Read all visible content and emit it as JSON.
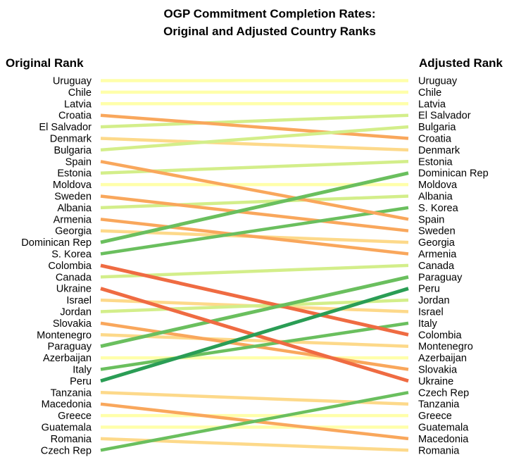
{
  "chart_data": {
    "type": "slope",
    "title_lines": [
      "OGP Commitment Completion Rates:",
      "Original and Adjusted Country Ranks"
    ],
    "left_header": "Original Rank",
    "right_header": "Adjusted Rank",
    "original_rank": [
      "Uruguay",
      "Chile",
      "Latvia",
      "Croatia",
      "El Salvador",
      "Denmark",
      "Bulgaria",
      "Spain",
      "Estonia",
      "Moldova",
      "Sweden",
      "Albania",
      "Armenia",
      "Georgia",
      "Dominican Rep",
      "S. Korea",
      "Colombia",
      "Canada",
      "Ukraine",
      "Israel",
      "Jordan",
      "Slovakia",
      "Montenegro",
      "Paraguay",
      "Azerbaijan",
      "Italy",
      "Peru",
      "Tanzania",
      "Macedonia",
      "Greece",
      "Guatemala",
      "Romania",
      "Czech Rep"
    ],
    "adjusted_rank": [
      "Uruguay",
      "Chile",
      "Latvia",
      "El Salvador",
      "Bulgaria",
      "Croatia",
      "Denmark",
      "Estonia",
      "Dominican Rep",
      "Moldova",
      "Albania",
      "S. Korea",
      "Spain",
      "Sweden",
      "Georgia",
      "Armenia",
      "Canada",
      "Paraguay",
      "Peru",
      "Jordan",
      "Israel",
      "Italy",
      "Colombia",
      "Montenegro",
      "Azerbaijan",
      "Slovakia",
      "Ukraine",
      "Czech Rep",
      "Tanzania",
      "Greece",
      "Guatemala",
      "Macedonia",
      "Romania"
    ],
    "change_colors": {
      "up_large": "#2a9d55",
      "up_medium": "#6abf5e",
      "up_small": "#d3ee8a",
      "unchanged": "#ffffaa",
      "down_small": "#fdd98a",
      "down_medium": "#f9a75c",
      "down_large": "#ef6b42",
      "down_very_large": "#d7262a"
    }
  }
}
